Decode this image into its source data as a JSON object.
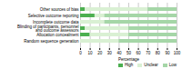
{
  "chart_data": {
    "type": "bar",
    "orientation": "horizontal",
    "stacked": true,
    "categories": [
      "Other sources of bias",
      "Selective outcome reporting",
      "Incomplete outcome data",
      "Blinding of participants, personnel\nand outcome assessors",
      "Allocation concealment",
      "Random sequence generation"
    ],
    "series": [
      {
        "name": "High",
        "color": "#4caf50",
        "values": [
          5,
          15,
          0,
          5,
          10,
          0
        ]
      },
      {
        "name": "Unclear",
        "color": "#d9f0d3",
        "values": [
          65,
          10,
          25,
          45,
          40,
          40
        ]
      },
      {
        "name": "Low",
        "color": "#a5d6a7",
        "values": [
          30,
          75,
          75,
          50,
          50,
          60
        ]
      }
    ],
    "xlabel": "Percentage",
    "xlim": [
      0,
      100
    ],
    "xticks": [
      0,
      10,
      20,
      30,
      40,
      50,
      60,
      70,
      80,
      90,
      100
    ],
    "grid": true,
    "legend": "lower right"
  }
}
